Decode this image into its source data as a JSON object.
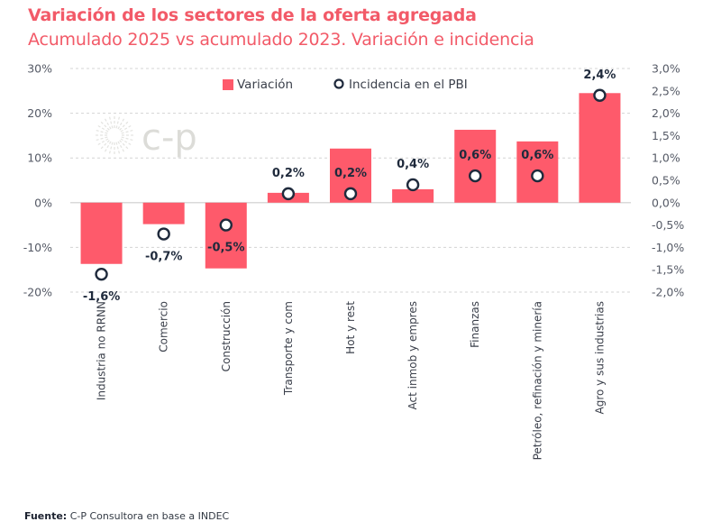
{
  "header": {
    "title": "Variación de los sectores de la oferta agregada",
    "subtitle": "Acumulado 2025 vs acumulado 2023. Variación e incidencia"
  },
  "watermark": "c-p",
  "footer": {
    "source_label": "Fuente:",
    "source_text": "C-P Consultora en base a INDEC"
  },
  "colors": {
    "bar": "#fe5a6b",
    "marker_stroke": "#1f2a3c",
    "title": "#f25a68"
  },
  "chart_data": {
    "type": "bar",
    "title": "Variación de los sectores de la oferta agregada",
    "subtitle": "Acumulado 2025 vs acumulado 2023. Variación e incidencia",
    "xlabel": "",
    "ylabel": "",
    "categories": [
      "Industria no RRNN",
      "Comercio",
      "Construcción",
      "Transporte y com",
      "Hot y rest",
      "Act inmob y empres",
      "Finanzas",
      "Petróleo, refinación y minería",
      "Agro y sus industrias"
    ],
    "series": [
      {
        "name": "Variación",
        "type": "bar",
        "axis": "left",
        "values": [
          -13.7,
          -4.8,
          -14.7,
          2.2,
          12.1,
          3.0,
          16.3,
          13.7,
          24.5
        ]
      },
      {
        "name": "Incidencia en el PBI",
        "type": "scatter",
        "axis": "right",
        "values": [
          -1.6,
          -0.7,
          -0.5,
          0.2,
          0.2,
          0.4,
          0.6,
          0.6,
          2.4
        ],
        "labels": [
          "-1,6%",
          "-0,7%",
          "-0,5%",
          "0,2%",
          "0,2%",
          "0,4%",
          "0,6%",
          "0,6%",
          "2,4%"
        ]
      }
    ],
    "y_left": {
      "range": [
        -20,
        30
      ],
      "ticks": [
        30,
        20,
        10,
        0,
        -10,
        -20
      ],
      "tick_labels": [
        "30%",
        "20%",
        "10%",
        "0%",
        "-10%",
        "-20%"
      ]
    },
    "y_right": {
      "range": [
        -2.0,
        3.0
      ],
      "ticks": [
        3.0,
        2.5,
        2.0,
        1.5,
        1.0,
        0.5,
        0.0,
        -0.5,
        -1.0,
        -1.5,
        -2.0
      ],
      "tick_labels": [
        "3,0%",
        "2,5%",
        "2,0%",
        "1,5%",
        "1,0%",
        "0,5%",
        "0,0%",
        "-0,5%",
        "-1,0%",
        "-1,5%",
        "-2,0%"
      ]
    },
    "grid": true,
    "legend": {
      "position": "top-center",
      "entries": [
        "Variación",
        "Incidencia en el PBI"
      ]
    }
  }
}
